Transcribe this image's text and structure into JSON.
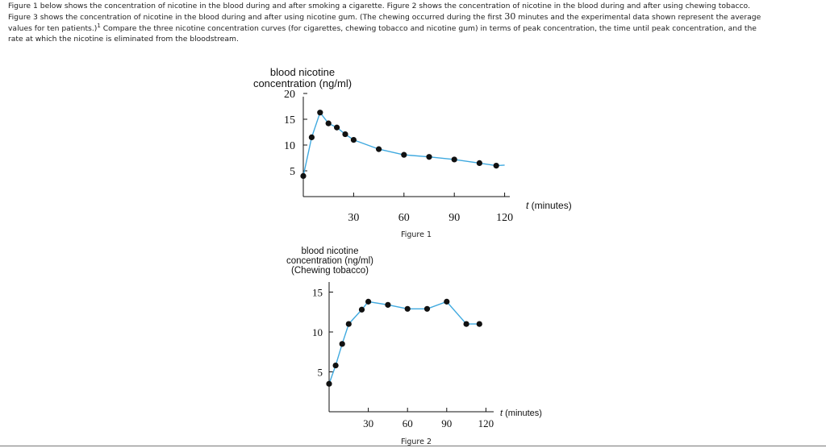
{
  "problem": {
    "line1": "Figure 1 below shows the concentration of nicotine in the blood during and after smoking a cigarette. Figure 2 shows the concentration of nicotine in the blood during and after using chewing tobacco.",
    "line2": "Figure 3 shows the concentration of nicotine in the blood during and after using nicotine gum. (The chewing occurred during the first ",
    "line2_num": "30",
    "line2_end": " minutes and the experimental data shown represent the average",
    "line3": "values for ten patients.)",
    "line3_sup": "1",
    "line3_end": " Compare the three nicotine concentration curves (for cigarettes, chewing tobacco and nicotine gum) in terms of peak concentration, the time until peak concentration, and the",
    "line4": "rate at which the nicotine is eliminated from the bloodstream."
  },
  "colors": {
    "curve": "#3fa9df",
    "point": "#111111",
    "axis": "#111111"
  },
  "chart_data": [
    {
      "type": "scatter",
      "caption": "Figure 1",
      "ylabel_lines": [
        "blood nicotine",
        "concentration (ng/ml)"
      ],
      "xlabel": "t (minutes)",
      "xticks": [
        30,
        60,
        90,
        120
      ],
      "yticks": [
        5,
        10,
        15,
        20
      ],
      "xlim": [
        0,
        120
      ],
      "ylim": [
        0,
        20
      ],
      "points": [
        {
          "x": 0,
          "y": 4
        },
        {
          "x": 5,
          "y": 11.5
        },
        {
          "x": 10,
          "y": 16.3
        },
        {
          "x": 15,
          "y": 14.2
        },
        {
          "x": 20,
          "y": 13.4
        },
        {
          "x": 25,
          "y": 12.1
        },
        {
          "x": 30,
          "y": 11
        },
        {
          "x": 45,
          "y": 9.2
        },
        {
          "x": 60,
          "y": 8.1
        },
        {
          "x": 75,
          "y": 7.7
        },
        {
          "x": 90,
          "y": 7.2
        },
        {
          "x": 105,
          "y": 6.5
        },
        {
          "x": 115,
          "y": 6
        }
      ],
      "curve_end": {
        "x": 120,
        "y": 6.1
      }
    },
    {
      "type": "scatter",
      "caption": "Figure 2",
      "ylabel_lines": [
        "blood nicotine",
        "concentration (ng/ml)",
        "(Chewing tobacco)"
      ],
      "xlabel": "t (minutes)",
      "xticks": [
        30,
        60,
        90,
        120
      ],
      "yticks": [
        5,
        10,
        15
      ],
      "xlim": [
        0,
        120
      ],
      "ylim": [
        0,
        15
      ],
      "points": [
        {
          "x": 0,
          "y": 3.5
        },
        {
          "x": 5,
          "y": 5.8
        },
        {
          "x": 10,
          "y": 8.5
        },
        {
          "x": 15,
          "y": 11
        },
        {
          "x": 25,
          "y": 12.8
        },
        {
          "x": 30,
          "y": 13.8
        },
        {
          "x": 45,
          "y": 13.4
        },
        {
          "x": 60,
          "y": 12.9
        },
        {
          "x": 75,
          "y": 12.9
        },
        {
          "x": 90,
          "y": 13.8
        },
        {
          "x": 105,
          "y": 11
        },
        {
          "x": 115,
          "y": 11
        }
      ]
    }
  ]
}
